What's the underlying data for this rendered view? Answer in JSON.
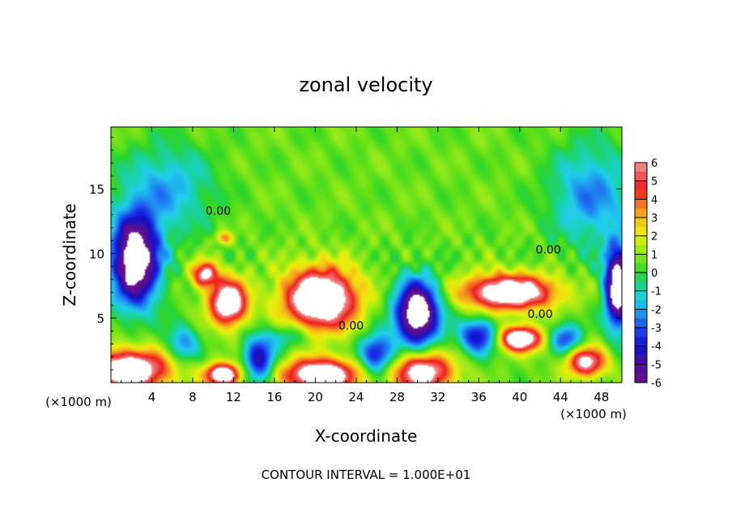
{
  "chart_data": {
    "type": "heatmap",
    "title": "zonal velocity",
    "xlabel": "X-coordinate",
    "ylabel": "Z-coordinate",
    "x_unit_label": "(×1000 m)",
    "x_unit_label_right": "(×1000 m)",
    "footer": "CONTOUR INTERVAL = 1.000E+01",
    "xlim": [
      0,
      50
    ],
    "ylim": [
      0,
      19.8
    ],
    "x_ticks": [
      "4",
      "8",
      "12",
      "16",
      "20",
      "24",
      "28",
      "32",
      "36",
      "40",
      "44",
      "48"
    ],
    "y_ticks": [
      "5",
      "10",
      "15"
    ],
    "contour_labels": [
      "0.00",
      "0.00",
      "0.00",
      "0.00"
    ],
    "colorbar": {
      "ticks": [
        "6",
        "5",
        "4",
        "3",
        "2",
        "1",
        "0",
        "-1",
        "-2",
        "-3",
        "-4",
        "-5",
        "-6"
      ],
      "levels": [
        {
          "v": 6,
          "c": "#f09898"
        },
        {
          "v": 5.5,
          "c": "#f26a6a"
        },
        {
          "v": 5,
          "c": "#f43d3d"
        },
        {
          "v": 4.5,
          "c": "#ee1c1c"
        },
        {
          "v": 4,
          "c": "#f25a1e"
        },
        {
          "v": 3.5,
          "c": "#f48a22"
        },
        {
          "v": 3,
          "c": "#f6b41c"
        },
        {
          "v": 2.5,
          "c": "#f2dc10"
        },
        {
          "v": 2,
          "c": "#e6f00a"
        },
        {
          "v": 1.5,
          "c": "#b9ec12"
        },
        {
          "v": 1,
          "c": "#8ee81a"
        },
        {
          "v": 0.5,
          "c": "#5ee01a"
        },
        {
          "v": 0,
          "c": "#2cd62a"
        },
        {
          "v": -0.5,
          "c": "#1fd27a"
        },
        {
          "v": -1,
          "c": "#18d2b6"
        },
        {
          "v": -1.5,
          "c": "#22ccee"
        },
        {
          "v": -2,
          "c": "#1fa8ee"
        },
        {
          "v": -2.5,
          "c": "#1e7cee"
        },
        {
          "v": -3,
          "c": "#1e4eee"
        },
        {
          "v": -3.5,
          "c": "#1a2ae6"
        },
        {
          "v": -4,
          "c": "#1212cc"
        },
        {
          "v": -4.5,
          "c": "#2a10b0"
        },
        {
          "v": -5,
          "c": "#4a109a"
        },
        {
          "v": -6,
          "c": "#6a1090"
        }
      ]
    },
    "features": [
      {
        "kind": "blob",
        "x": 20.5,
        "z": 6.5,
        "rx": 3.6,
        "rz": 2.4,
        "v": 9,
        "gap": true
      },
      {
        "kind": "blob",
        "x": 11.5,
        "z": 6.2,
        "rx": 1.9,
        "rz": 1.8,
        "v": 8,
        "gap": true
      },
      {
        "kind": "blob",
        "x": 9.2,
        "z": 8.4,
        "rx": 1.3,
        "rz": 1.0,
        "v": 6
      },
      {
        "kind": "blob",
        "x": 39.0,
        "z": 7.0,
        "rx": 4.6,
        "rz": 1.4,
        "v": 8,
        "gap": true
      },
      {
        "kind": "blob",
        "x": 40.0,
        "z": 3.4,
        "rx": 2.2,
        "rz": 1.0,
        "v": 8,
        "gap": true
      },
      {
        "kind": "blob",
        "x": 30.0,
        "z": 5.4,
        "rx": 2.2,
        "rz": 2.6,
        "v": -9,
        "gap": true
      },
      {
        "kind": "blob",
        "x": 2.4,
        "z": 9.5,
        "rx": 2.4,
        "rz": 3.6,
        "v": -9,
        "gap": true
      },
      {
        "kind": "blob",
        "x": 49.6,
        "z": 7.4,
        "rx": 1.3,
        "rz": 3.2,
        "v": -9,
        "gap": true
      },
      {
        "kind": "blob",
        "x": 1.8,
        "z": 1.0,
        "rx": 4.0,
        "rz": 1.6,
        "v": 8,
        "gap": true
      },
      {
        "kind": "blob",
        "x": 11.0,
        "z": 0.6,
        "rx": 1.8,
        "rz": 0.9,
        "v": 8,
        "gap": true
      },
      {
        "kind": "blob",
        "x": 20.5,
        "z": 0.6,
        "rx": 3.8,
        "rz": 1.3,
        "v": 8,
        "gap": true
      },
      {
        "kind": "blob",
        "x": 30.5,
        "z": 0.8,
        "rx": 3.0,
        "rz": 1.6,
        "v": 7
      },
      {
        "kind": "blob",
        "x": 14.5,
        "z": 1.8,
        "rx": 1.6,
        "rz": 2.0,
        "v": -5
      },
      {
        "kind": "blob",
        "x": 26.0,
        "z": 2.2,
        "rx": 1.8,
        "rz": 1.6,
        "v": -5
      },
      {
        "kind": "blob",
        "x": 36.0,
        "z": 3.6,
        "rx": 2.0,
        "rz": 1.4,
        "v": -5
      },
      {
        "kind": "blob",
        "x": 44.5,
        "z": 3.4,
        "rx": 1.6,
        "rz": 1.2,
        "v": -4
      },
      {
        "kind": "blob",
        "x": 7.0,
        "z": 3.0,
        "rx": 1.6,
        "rz": 1.5,
        "v": -3
      },
      {
        "kind": "blob",
        "x": 17.5,
        "z": 3.6,
        "rx": 2.0,
        "rz": 1.0,
        "v": -2
      },
      {
        "kind": "blob",
        "x": 46.5,
        "z": 1.6,
        "rx": 2.0,
        "rz": 1.2,
        "v": 6
      },
      {
        "kind": "blob",
        "x": 5.5,
        "z": 15.0,
        "rx": 4.5,
        "rz": 3.5,
        "v": -2.5
      },
      {
        "kind": "blob",
        "x": 47.0,
        "z": 14.5,
        "rx": 4.0,
        "rz": 4.0,
        "v": -3
      },
      {
        "kind": "blob",
        "x": 11.0,
        "z": 11.2,
        "rx": 0.8,
        "rz": 0.5,
        "v": 3
      }
    ]
  }
}
